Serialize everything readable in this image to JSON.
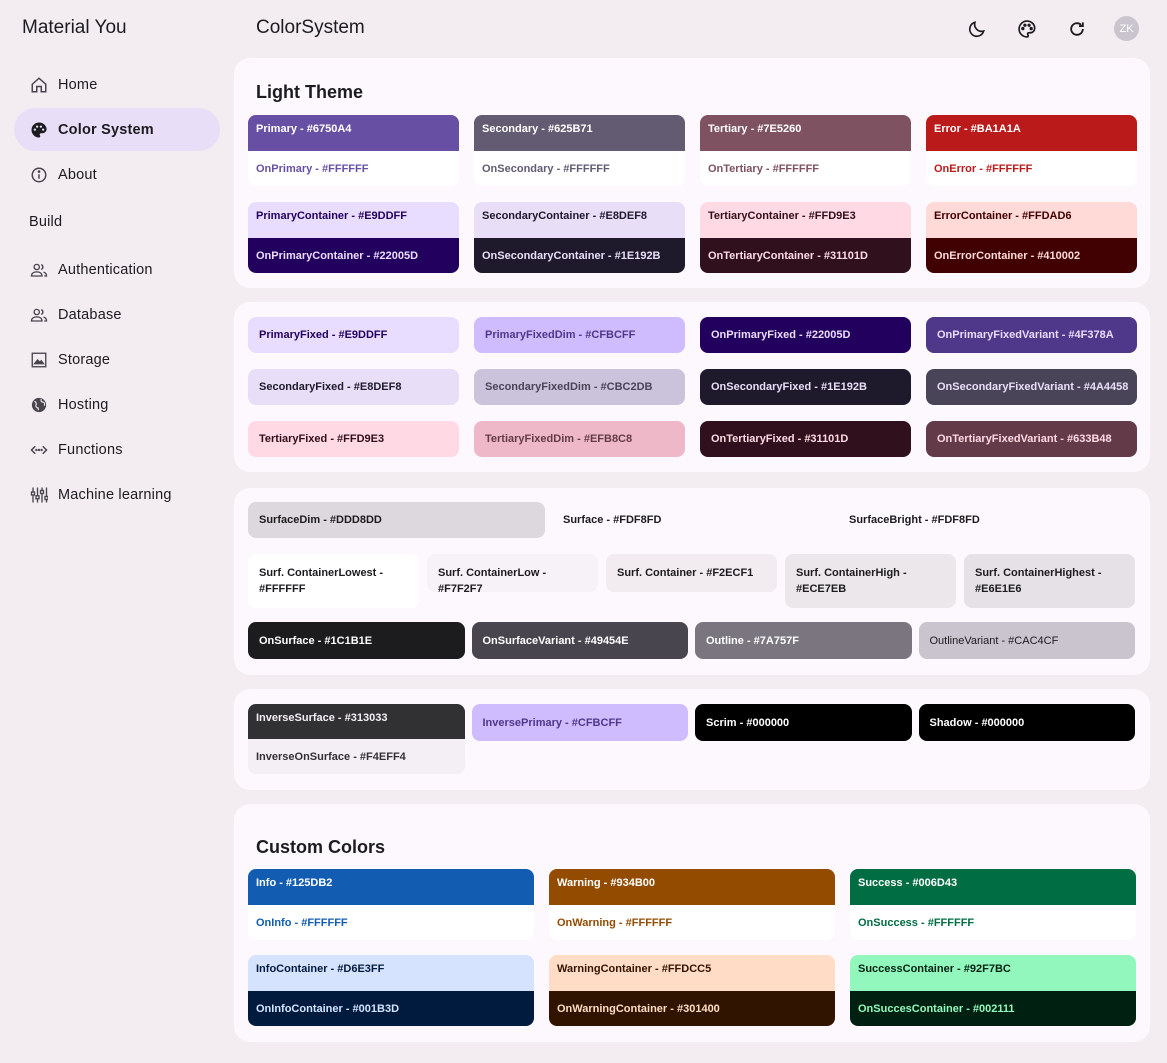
{
  "app": {
    "title": "Material You"
  },
  "sidebar": {
    "items": [
      {
        "label": "Home",
        "icon": "home-icon"
      },
      {
        "label": "Color System",
        "icon": "palette-icon"
      },
      {
        "label": "About",
        "icon": "info-icon"
      }
    ],
    "section": "Build",
    "build_items": [
      {
        "label": "Authentication",
        "icon": "people-icon"
      },
      {
        "label": "Database",
        "icon": "people-icon"
      },
      {
        "label": "Storage",
        "icon": "image-icon"
      },
      {
        "label": "Hosting",
        "icon": "globe-icon"
      },
      {
        "label": "Functions",
        "icon": "code-icon"
      },
      {
        "label": "Machine learning",
        "icon": "sliders-icon"
      }
    ]
  },
  "header": {
    "title": "ColorSystem",
    "avatar": "ZK"
  },
  "light_theme": {
    "title": "Light Theme",
    "pairs": [
      {
        "top": "Primary - #6750A4",
        "bot": "OnPrimary - #FFFFFF"
      },
      {
        "top": "Secondary - #625B71",
        "bot": "OnSecondary - #FFFFFF"
      },
      {
        "top": "Tertiary - #7E5260",
        "bot": "OnTertiary - #FFFFFF"
      },
      {
        "top": "Error - #BA1A1A",
        "bot": "OnError - #FFFFFF"
      },
      {
        "top": "PrimaryContainer - #E9DDFF",
        "bot": "OnPrimaryContainer - #22005D"
      },
      {
        "top": "SecondaryContainer - #E8DEF8",
        "bot": "OnSecondaryContainer - #1E192B"
      },
      {
        "top": "TertiaryContainer - #FFD9E3",
        "bot": "OnTertiaryContainer - #31101D"
      },
      {
        "top": "ErrorContainer - #FFDAD6",
        "bot": "OnErrorContainer - #410002"
      }
    ]
  },
  "fixed": {
    "items": [
      "PrimaryFixed - #E9DDFF",
      "PrimaryFixedDim - #CFBCFF",
      "OnPrimaryFixed - #22005D",
      "OnPrimaryFixedVariant - #4F378A",
      "SecondaryFixed - #E8DEF8",
      "SecondaryFixedDim - #CBC2DB",
      "OnSecondaryFixed - #1E192B",
      "OnSecondaryFixedVariant - #4A4458",
      "TertiaryFixed - #FFD9E3",
      "TertiaryFixedDim - #EFB8C8",
      "OnTertiaryFixed - #31101D",
      "OnTertiaryFixedVariant - #633B48"
    ]
  },
  "surface": {
    "row1": [
      "SurfaceDim - #DDD8DD",
      "Surface - #FDF8FD",
      "SurfaceBright - #FDF8FD"
    ],
    "row2": [
      "Surf. ContainerLowest - #FFFFFF",
      "Surf. ContainerLow - #F7F2F7",
      "Surf. Container - #F2ECF1",
      "Surf. ContainerHigh - #ECE7EB",
      "Surf. ContainerHighest - #E6E1E6"
    ],
    "row3": [
      "OnSurface - #1C1B1E",
      "OnSurfaceVariant - #49454E",
      "Outline - #7A757F",
      "OutlineVariant - #CAC4CF"
    ]
  },
  "inverse": {
    "pair_top": "InverseSurface - #313033",
    "pair_bot": "InverseOnSurface - #F4EFF4",
    "items": [
      "InversePrimary - #CFBCFF",
      "Scrim - #000000",
      "Shadow - #000000"
    ]
  },
  "custom": {
    "title": "Custom Colors",
    "pairs": [
      {
        "top": "Info - #125DB2",
        "bot": "OnInfo - #FFFFFF"
      },
      {
        "top": "Warning - #934B00",
        "bot": "OnWarning - #FFFFFF"
      },
      {
        "top": "Success - #006D43",
        "bot": "OnSuccess - #FFFFFF"
      },
      {
        "top": "InfoContainer - #D6E3FF",
        "bot": "OnInfoContainer - #001B3D"
      },
      {
        "top": "WarningContainer - #FFDCC5",
        "bot": "OnWarningContainer - #301400"
      },
      {
        "top": "SuccessContainer - #92F7BC",
        "bot": "OnSuccesContainer - #002111"
      }
    ]
  }
}
